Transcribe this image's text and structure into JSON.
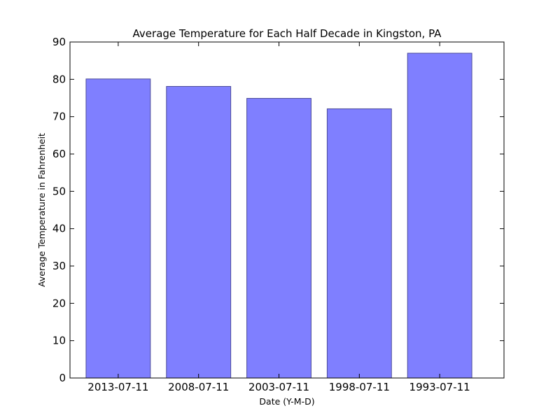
{
  "chart_data": {
    "type": "bar",
    "title": "Average Temperature for Each Half Decade in Kingston, PA",
    "xlabel": "Date (Y-M-D)",
    "ylabel": "Average Temperature in Fahrenheit",
    "categories": [
      "2013-07-11",
      "2008-07-11",
      "2003-07-11",
      "1998-07-11",
      "1993-07-11"
    ],
    "values": [
      80.1,
      78.1,
      74.9,
      72.1,
      87.0
    ],
    "ylim": [
      0,
      90
    ],
    "yticks": [
      0,
      10,
      20,
      30,
      40,
      50,
      60,
      70,
      80,
      90
    ],
    "grid": false,
    "colors": {
      "bar_fill": "#7f7fff",
      "bar_edge": "#4b4b99",
      "axis": "#000000"
    }
  }
}
